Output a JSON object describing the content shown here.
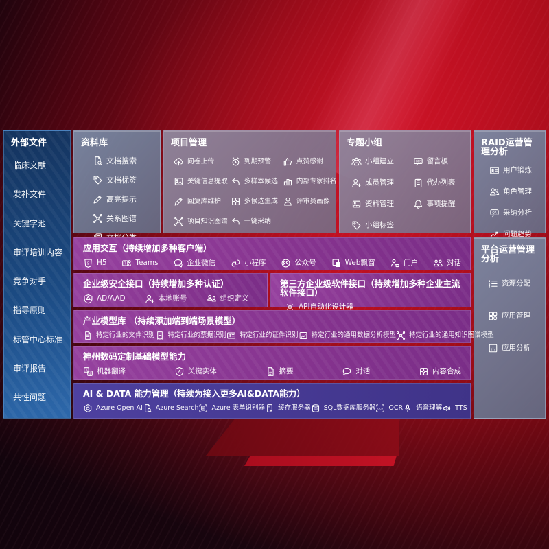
{
  "colors": {
    "background_red": "#a50d18",
    "sidebar_blue": "#1b4a82",
    "panel_slate": "#76859f",
    "panel_purple": "#86348f",
    "panel_indigo": "#46399a",
    "text": "#ffffff"
  },
  "sidebar": {
    "title": "外部文件",
    "items": [
      {
        "label": "临床文献"
      },
      {
        "label": "发补文件"
      },
      {
        "label": "关键字池"
      },
      {
        "label": "审评培训内容"
      },
      {
        "label": "竞争对手"
      },
      {
        "label": "指导原则"
      },
      {
        "label": "标管中心标准"
      },
      {
        "label": "审评报告"
      },
      {
        "label": "共性问题"
      }
    ]
  },
  "library": {
    "title": "资料库",
    "items": [
      {
        "icon": "doc-search-icon",
        "label": "文档搜索"
      },
      {
        "icon": "tag-icon",
        "label": "文档标签"
      },
      {
        "icon": "highlight-pen-icon",
        "label": "高亮提示"
      },
      {
        "icon": "knowledge-graph-icon",
        "label": "关系图谱"
      },
      {
        "icon": "doc-copy-icon",
        "label": "文档分类"
      }
    ]
  },
  "project": {
    "title": "项目管理",
    "items": [
      {
        "icon": "cloud-upload-icon",
        "label": "问卷上传"
      },
      {
        "icon": "alarm-icon",
        "label": "到期预警"
      },
      {
        "icon": "thumbs-up-icon",
        "label": "点赞感谢"
      },
      {
        "icon": "doc-extract-icon",
        "label": "关键信息提取"
      },
      {
        "icon": "reply-arrow-icon",
        "label": "多样本候选"
      },
      {
        "icon": "ranking-icon",
        "label": "内部专家排名"
      },
      {
        "icon": "highlight-pen-icon",
        "label": "回复库维护"
      },
      {
        "icon": "puzzle-icon",
        "label": "多候选生成"
      },
      {
        "icon": "person-icon",
        "label": "评审员画像"
      },
      {
        "icon": "knowledge-graph-icon",
        "label": "项目知识图谱"
      },
      {
        "icon": "adopt-arrow-icon",
        "label": "一键采纳"
      }
    ]
  },
  "group": {
    "title": "专题小组",
    "items": [
      {
        "icon": "people-group-icon",
        "label": "小组建立"
      },
      {
        "icon": "bbs-board-icon",
        "label": "留言板"
      },
      {
        "icon": "person-add-icon",
        "label": "成员管理"
      },
      {
        "icon": "clipboard-icon",
        "label": "代办列表"
      },
      {
        "icon": "image-frame-icon",
        "label": "资料管理"
      },
      {
        "icon": "bell-icon",
        "label": "事项提醒"
      },
      {
        "icon": "tag-icon",
        "label": "小组标签"
      }
    ]
  },
  "raid": {
    "title": "RAID运营管理分析",
    "items": [
      {
        "icon": "id-badge-icon",
        "label": "用户锻炼"
      },
      {
        "icon": "people-icon",
        "label": "角色管理"
      },
      {
        "icon": "qa-chat-icon",
        "label": "采纳分析"
      },
      {
        "icon": "trend-chart-icon",
        "label": "问题趋势"
      }
    ]
  },
  "platform": {
    "title": "平台运营管理分析",
    "items": [
      {
        "icon": "list-icon",
        "label": "资源分配"
      },
      {
        "icon": "app-grid-icon",
        "label": "应用管理"
      },
      {
        "icon": "app-chart-icon",
        "label": "应用分析"
      }
    ]
  },
  "interaction": {
    "title": "应用交互（持续增加多种客户端）",
    "items": [
      {
        "icon": "html5-icon",
        "label": "H5"
      },
      {
        "icon": "teams-icon",
        "label": "Teams"
      },
      {
        "icon": "wechat-work-icon",
        "label": "企业微信"
      },
      {
        "icon": "miniprogram-icon",
        "label": "小程序"
      },
      {
        "icon": "official-account-icon",
        "label": "公众号"
      },
      {
        "icon": "web-window-icon",
        "label": "Web飘窗"
      },
      {
        "icon": "portal-icon",
        "label": "门户"
      },
      {
        "icon": "dialog-icon",
        "label": "对话"
      }
    ]
  },
  "security": {
    "title": "企业级安全接口（持续增加多种认证）",
    "items": [
      {
        "icon": "ad-shield-icon",
        "label": "AD/AAD"
      },
      {
        "icon": "person-add-icon",
        "label": "本地账号"
      },
      {
        "icon": "org-icon",
        "label": "组织定义"
      }
    ]
  },
  "thirdparty": {
    "title": "第三方企业级软件接口（持续增加多种企业主流软件接口）",
    "items": [
      {
        "icon": "api-gear-icon",
        "label": "API自动化设计器"
      }
    ]
  },
  "industry": {
    "title": "产业模型库 （持续添加端到端场景模型）",
    "items": [
      {
        "icon": "doc-icon",
        "label": "特定行业的文件识别"
      },
      {
        "icon": "receipt-icon",
        "label": "特定行业的票据识别"
      },
      {
        "icon": "id-card-icon",
        "label": "特定行业的证件识别"
      },
      {
        "icon": "data-chart-icon",
        "label": "特定行业的通用数据分析模型"
      },
      {
        "icon": "knowledge-graph-icon",
        "label": "特定行业的通用知识图谱模型"
      }
    ]
  },
  "basemodel": {
    "title": "神州数码定制基础模型能力",
    "items": [
      {
        "icon": "translate-icon",
        "label": "机器翻译"
      },
      {
        "icon": "entity-badge-icon",
        "label": "关键实体"
      },
      {
        "icon": "summary-doc-icon",
        "label": "摘要"
      },
      {
        "icon": "chat-icon",
        "label": "对话"
      },
      {
        "icon": "puzzle-icon",
        "label": "内容合成"
      }
    ]
  },
  "aidata": {
    "title": "AI & DATA 能力管理（持续为接入更多AI&DATA能力）",
    "items": [
      {
        "icon": "openai-icon",
        "label": "Azure Open AI"
      },
      {
        "icon": "azure-search-icon",
        "label": "Azure Search"
      },
      {
        "icon": "form-recognizer-icon",
        "label": "Azure 表单识别器"
      },
      {
        "icon": "cache-server-icon",
        "label": "缓存服务器"
      },
      {
        "icon": "sql-database-icon",
        "label": "SQL数据库服务器"
      },
      {
        "icon": "ocr-icon",
        "label": "OCR"
      },
      {
        "icon": "speech-icon",
        "label": "语音理解"
      },
      {
        "icon": "tts-icon",
        "label": "TTS"
      }
    ]
  }
}
